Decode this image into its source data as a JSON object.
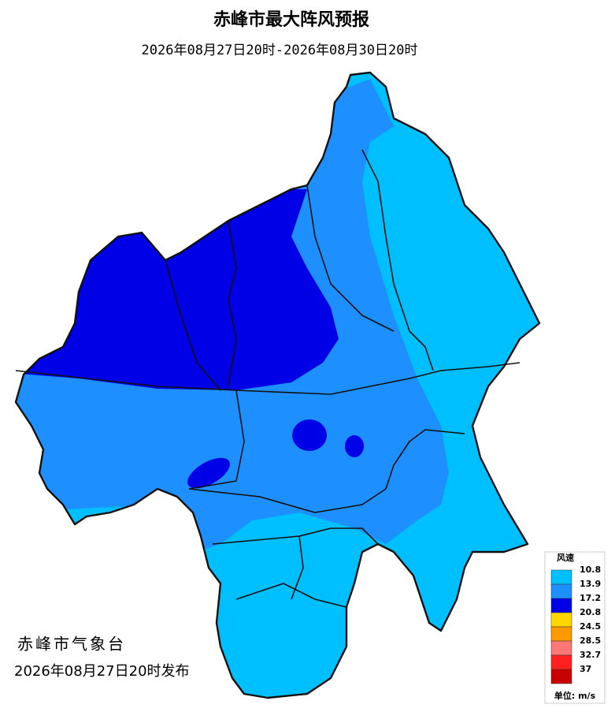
{
  "header": {
    "title": "赤峰市最大阵风预报",
    "subtitle": "2026年08月27日20时-2026年08月30日20时"
  },
  "legend": {
    "title": "风速",
    "unit": "单位: m/s",
    "levels": [
      {
        "value": 10.8,
        "color": "#00bfff"
      },
      {
        "value": 13.9,
        "color": "#1e8fff"
      },
      {
        "value": 17.2,
        "color": "#0000e6"
      },
      {
        "value": 20.8,
        "color": "#ffd700"
      },
      {
        "value": 24.5,
        "color": "#ff9900"
      },
      {
        "value": 28.5,
        "color": "#ff7777"
      },
      {
        "value": 32.7,
        "color": "#ff2020"
      },
      {
        "value": 37,
        "color": "#c80000"
      }
    ]
  },
  "footer": {
    "issuer": "赤峰市气象台",
    "release": "2026年08月27日20时发布"
  }
}
